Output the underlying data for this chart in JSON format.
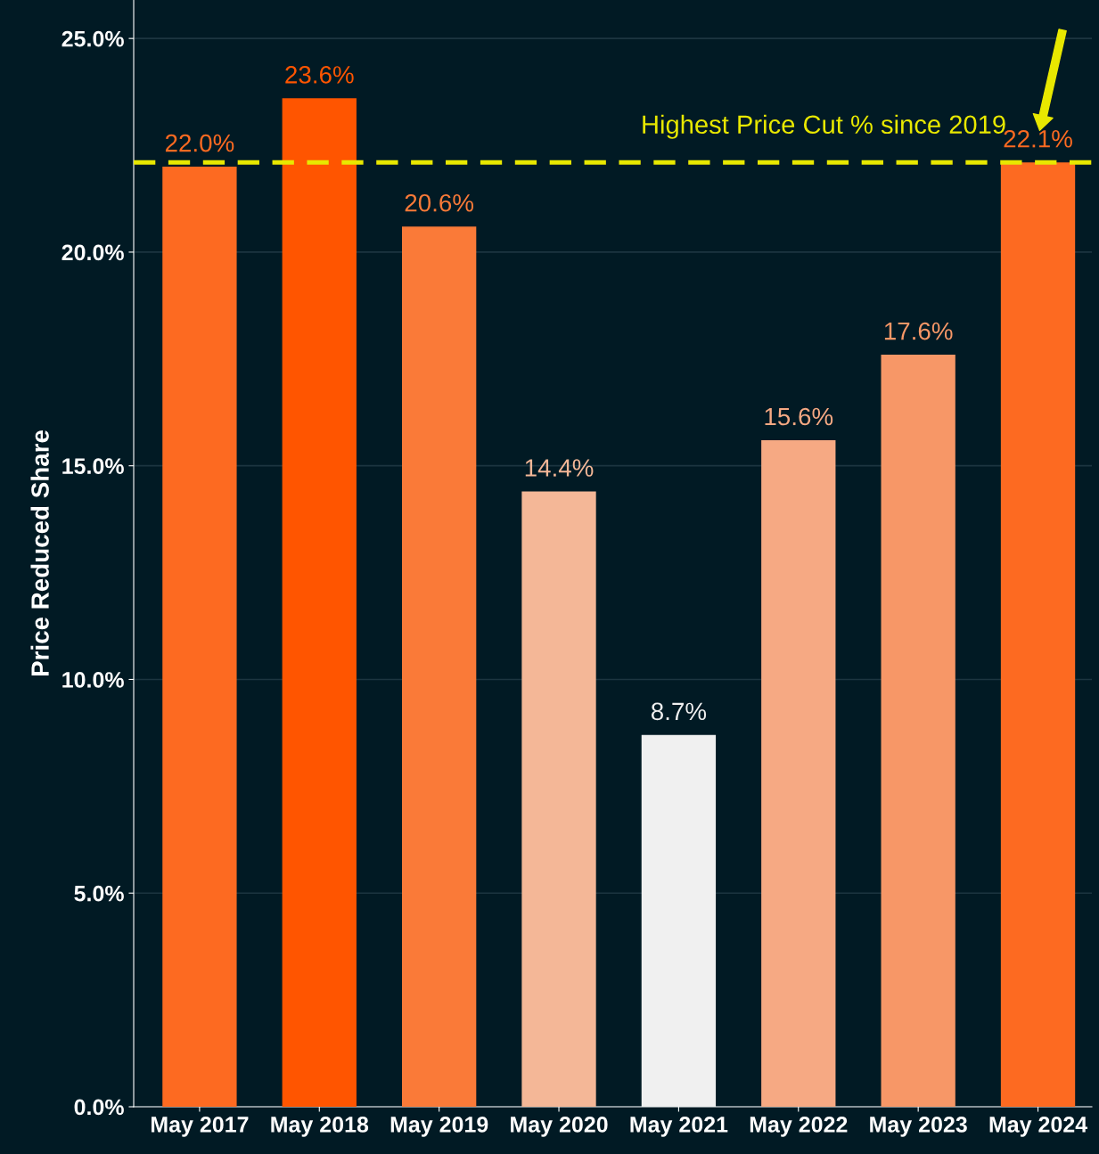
{
  "chart_data": {
    "type": "bar",
    "ylabel": "Price Reduced Share",
    "categories": [
      "May 2017",
      "May 2018",
      "May 2019",
      "May 2020",
      "May 2021",
      "May 2022",
      "May 2023",
      "May 2024"
    ],
    "values": [
      22.0,
      23.6,
      20.6,
      14.4,
      8.7,
      15.6,
      17.6,
      22.1
    ],
    "colors": [
      "#fd6a21",
      "#ff5500",
      "#fa7a38",
      "#f4b797",
      "#f0f0f0",
      "#f6a983",
      "#f79767",
      "#fd6a21"
    ],
    "value_labels": [
      "22.0%",
      "23.6%",
      "20.6%",
      "14.4%",
      "8.7%",
      "15.6%",
      "17.6%",
      "22.1%"
    ],
    "ylim": [
      0,
      25.9
    ],
    "yticks": [
      {
        "value": 0,
        "label": "0.0%"
      },
      {
        "value": 5,
        "label": "5.0%"
      },
      {
        "value": 10,
        "label": "10.0%"
      },
      {
        "value": 15,
        "label": "15.0%"
      },
      {
        "value": 20,
        "label": "20.0%"
      },
      {
        "value": 25,
        "label": "25.0%"
      }
    ],
    "grid": "y",
    "ref_lines": [
      {
        "axis": "y",
        "value": 22.1,
        "label": "Highest Price Cut % since 2019",
        "color": "#e8e800",
        "line_style": "dashed"
      }
    ]
  }
}
